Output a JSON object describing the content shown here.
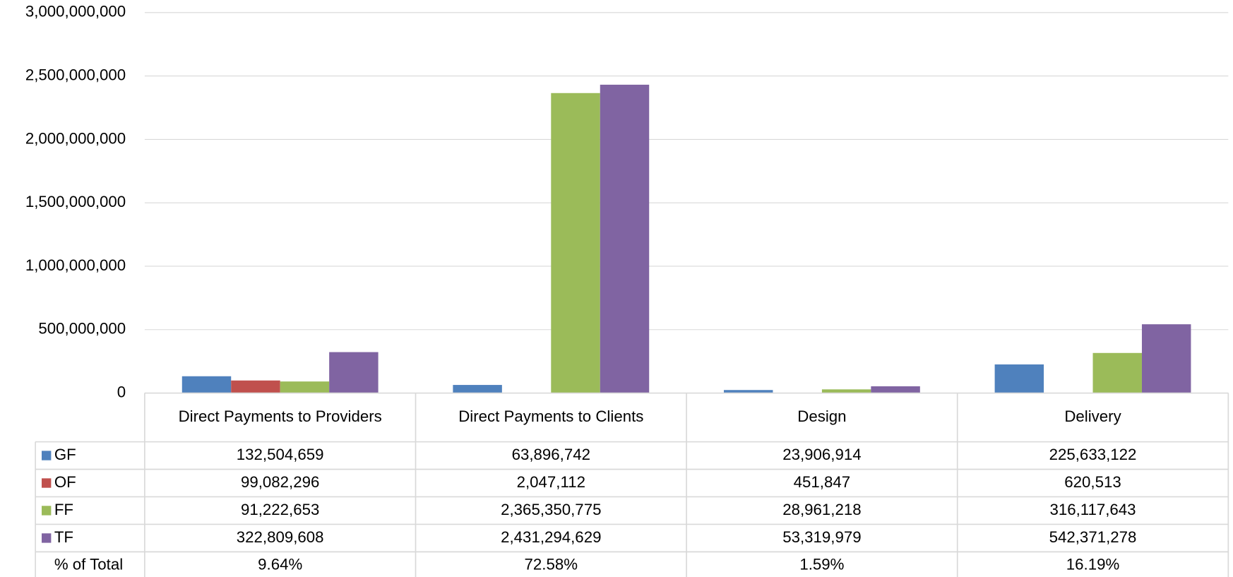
{
  "chart_data": {
    "type": "bar",
    "categories": [
      "Direct Payments to Providers",
      "Direct Payments to Clients",
      "Design",
      "Delivery"
    ],
    "series": [
      {
        "name": "GF",
        "color": "#4f81bd",
        "values": [
          132504659,
          63896742,
          23906914,
          225633122
        ],
        "value_labels": [
          "132,504,659",
          "63,896,742",
          "23,906,914",
          "225,633,122"
        ]
      },
      {
        "name": "OF",
        "color": "#c0504d",
        "values": [
          99082296,
          2047112,
          451847,
          620513
        ],
        "value_labels": [
          "99,082,296",
          "2,047,112",
          "451,847",
          "620,513"
        ]
      },
      {
        "name": "FF",
        "color": "#9bbb59",
        "values": [
          91222653,
          2365350775,
          28961218,
          316117643
        ],
        "value_labels": [
          "91,222,653",
          "2,365,350,775",
          "28,961,218",
          "316,117,643"
        ]
      },
      {
        "name": "TF",
        "color": "#8064a2",
        "values": [
          322809608,
          2431294629,
          53319979,
          542371278
        ],
        "value_labels": [
          "322,809,608",
          "2,431,294,629",
          "53,319,979",
          "542,371,278"
        ]
      }
    ],
    "percent_of_total": {
      "name": "% of Total",
      "values": [
        9.64,
        72.58,
        1.59,
        16.19
      ],
      "value_labels": [
        "9.64%",
        "72.58%",
        "1.59%",
        "16.19%"
      ]
    },
    "ylim": [
      0,
      3000000000
    ],
    "yticks": [
      0,
      {
        "value": 500000000,
        "label": "500,000,000"
      },
      {
        "value": 1000000000,
        "label": "1,000,000,000"
      },
      {
        "value": 1500000000,
        "label": "1,500,000,000"
      },
      {
        "value": 2000000000,
        "label": "2,000,000,000"
      },
      {
        "value": 2500000000,
        "label": "2,500,000,000"
      },
      {
        "value": 3000000000,
        "label": "3,000,000,000"
      }
    ],
    "grid": true
  }
}
